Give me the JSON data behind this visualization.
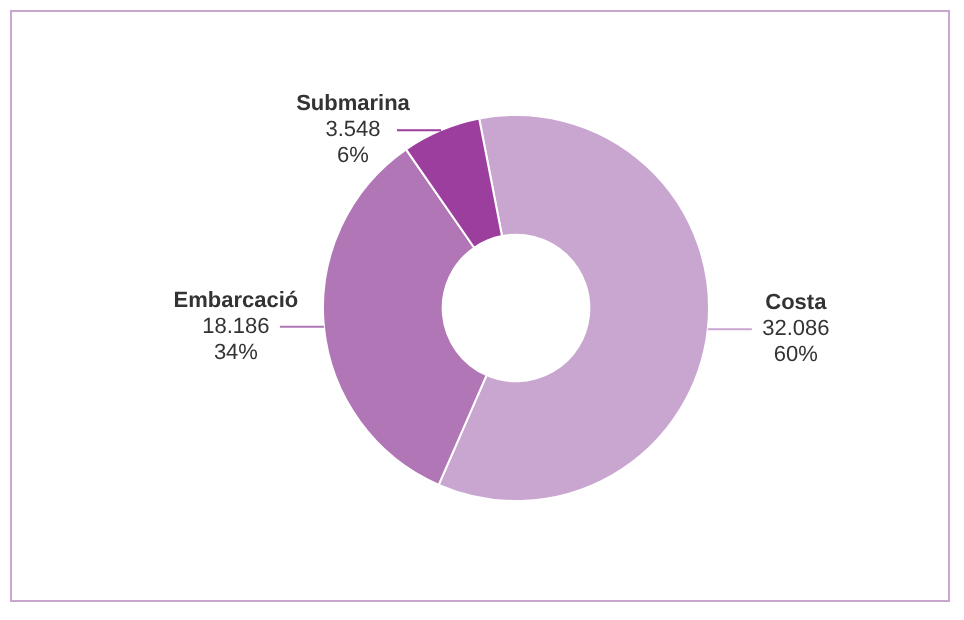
{
  "chart_data": {
    "type": "donut",
    "categories": [
      "Costa",
      "Embarcació",
      "Submarina"
    ],
    "values": [
      32086,
      18186,
      3548
    ],
    "colors": [
      "#c9a6d0",
      "#b176b5",
      "#9c3e9d"
    ],
    "value_labels": [
      "32.086",
      "18.186",
      "3.548"
    ],
    "annotations": [
      {
        "text": "60%",
        "x": "Costa"
      },
      {
        "text": "34%",
        "x": "Embarcació"
      },
      {
        "text": "6%",
        "x": "Submarina"
      }
    ],
    "legend": false
  }
}
